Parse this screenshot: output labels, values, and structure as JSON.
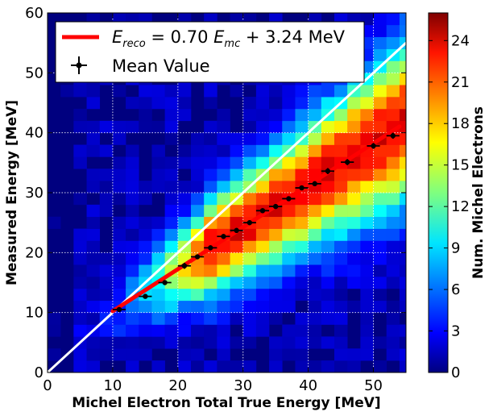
{
  "chart_data": {
    "type": "heatmap",
    "title": "",
    "xlabel": "Michel Electron Total True Energy [MeV]",
    "ylabel": "Measured Energy [MeV]",
    "xlim": [
      0,
      55
    ],
    "ylim": [
      0,
      60
    ],
    "x_ticks": [
      "0",
      "10",
      "20",
      "30",
      "40",
      "50"
    ],
    "y_ticks": [
      "0",
      "10",
      "20",
      "30",
      "40",
      "50",
      "60"
    ],
    "grid": true,
    "bin_width": 2,
    "bin_height": 2,
    "colorbar": {
      "label": "Num. Michel Electrons",
      "range": [
        0,
        26
      ],
      "ticks": [
        "0",
        "3",
        "6",
        "9",
        "12",
        "15",
        "18",
        "21",
        "24"
      ],
      "colormap": "jet"
    },
    "fit_line": {
      "legend_math": "E",
      "legend_sub_reco": "reco",
      "legend_sub_mc": "mc",
      "legend_mid": " = 0.70 ",
      "legend_end": " + 3.24 MeV",
      "slope": 0.7,
      "intercept": 3.24,
      "x_range": [
        10,
        54
      ],
      "color": "#ff0000"
    },
    "identity_line": {
      "x_range": [
        0,
        55
      ],
      "color": "#ffffff"
    },
    "mean_values": {
      "label": "Mean Value",
      "points": [
        {
          "x": 11,
          "y": 10.5,
          "xerr": 1,
          "yerr": 0.4
        },
        {
          "x": 15,
          "y": 12.7,
          "xerr": 1,
          "yerr": 0.4
        },
        {
          "x": 18,
          "y": 15.0,
          "xerr": 1,
          "yerr": 0.4
        },
        {
          "x": 21,
          "y": 17.8,
          "xerr": 1,
          "yerr": 0.5
        },
        {
          "x": 23,
          "y": 19.3,
          "xerr": 1,
          "yerr": 0.4
        },
        {
          "x": 25,
          "y": 20.8,
          "xerr": 1,
          "yerr": 0.4
        },
        {
          "x": 27,
          "y": 22.7,
          "xerr": 1,
          "yerr": 0.4
        },
        {
          "x": 29,
          "y": 23.7,
          "xerr": 1,
          "yerr": 0.4
        },
        {
          "x": 31,
          "y": 25.0,
          "xerr": 1,
          "yerr": 0.4
        },
        {
          "x": 33,
          "y": 27.0,
          "xerr": 1,
          "yerr": 0.4
        },
        {
          "x": 35,
          "y": 27.7,
          "xerr": 1,
          "yerr": 0.4
        },
        {
          "x": 37,
          "y": 29.0,
          "xerr": 1,
          "yerr": 0.4
        },
        {
          "x": 39,
          "y": 30.8,
          "xerr": 1,
          "yerr": 0.4
        },
        {
          "x": 41,
          "y": 31.5,
          "xerr": 1,
          "yerr": 0.4
        },
        {
          "x": 43,
          "y": 33.6,
          "xerr": 1,
          "yerr": 0.5
        },
        {
          "x": 46,
          "y": 35.1,
          "xerr": 1,
          "yerr": 0.5
        },
        {
          "x": 50,
          "y": 37.8,
          "xerr": 1,
          "yerr": 0.5
        },
        {
          "x": 53,
          "y": 39.5,
          "xerr": 1,
          "yerr": 0.5
        }
      ]
    }
  }
}
